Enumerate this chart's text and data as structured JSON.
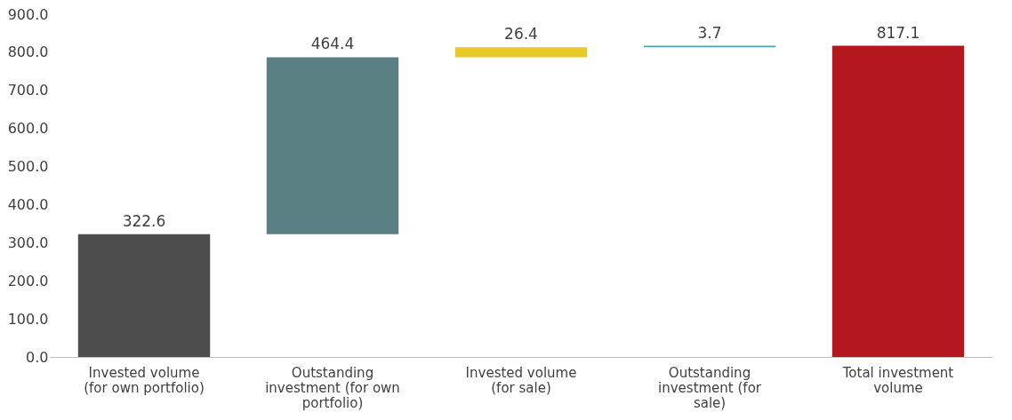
{
  "chart_data": {
    "type": "bar",
    "categories": [
      "Invested volume (for own portfolio)",
      "Outstanding investment (for own portfolio)",
      "Invested volume (for sale)",
      "Outstanding investment (for sale)",
      "Total investment volume"
    ],
    "values": [
      322.6,
      464.4,
      26.4,
      3.7,
      817.1
    ],
    "base": [
      0,
      322.6,
      787.0,
      813.4,
      0
    ],
    "colors": [
      "#4d4d4d",
      "#5b8083",
      "#e8c926",
      "#4ba3b0",
      "#b5171f"
    ],
    "ylim": [
      0,
      900
    ],
    "yticks": [
      {
        "value": 0,
        "label": "0.0"
      },
      {
        "value": 100,
        "label": "100.0"
      },
      {
        "value": 200,
        "label": "200.0"
      },
      {
        "value": 300,
        "label": "300.0"
      },
      {
        "value": 400,
        "label": "400.0"
      },
      {
        "value": 500,
        "label": "500.0"
      },
      {
        "value": 600,
        "label": "600.0"
      },
      {
        "value": 700,
        "label": "700.0"
      },
      {
        "value": 800,
        "label": "800.0"
      },
      {
        "value": 900,
        "label": "900.0"
      }
    ],
    "data_labels": true,
    "grid": false
  }
}
